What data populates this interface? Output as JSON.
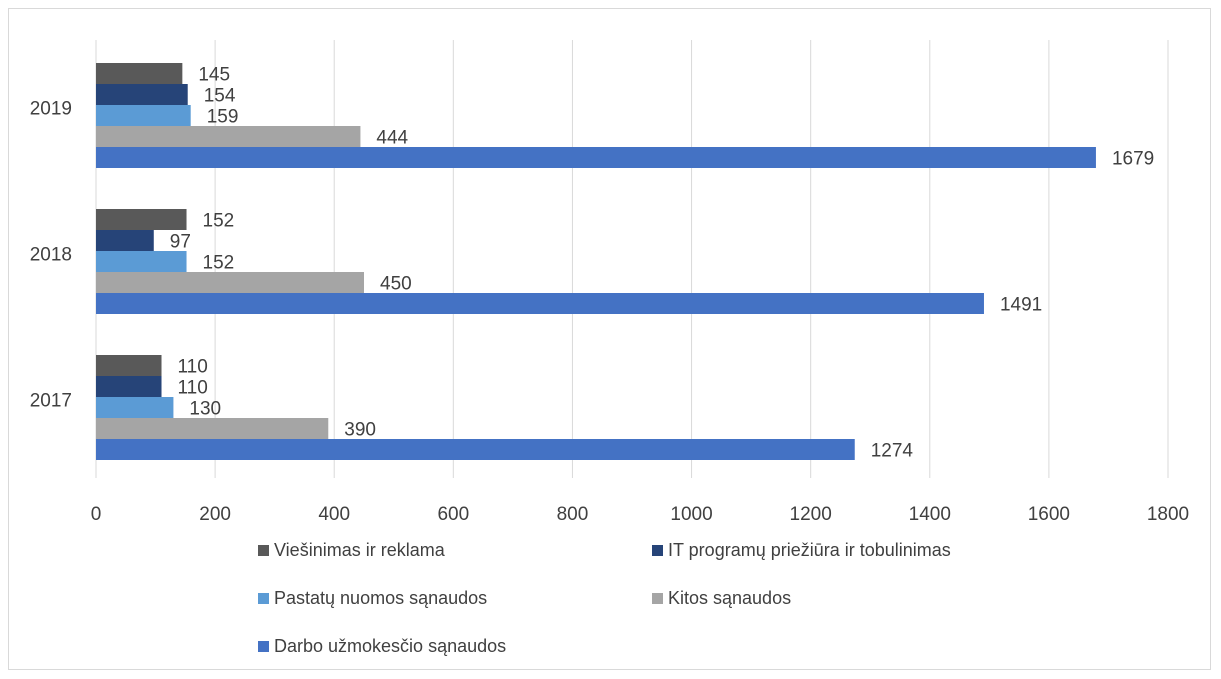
{
  "chart_data": {
    "type": "bar",
    "orientation": "horizontal",
    "categories": [
      "2017",
      "2018",
      "2019"
    ],
    "series": [
      {
        "name": "Viešinimas ir reklama",
        "color": "#595959",
        "values": [
          110,
          152,
          145
        ]
      },
      {
        "name": "IT programų priežiūra ir tobulinimas",
        "color": "#264478",
        "values": [
          110,
          97,
          154
        ]
      },
      {
        "name": "Pastatų nuomos sąnaudos",
        "color": "#5b9bd5",
        "values": [
          130,
          152,
          159
        ]
      },
      {
        "name": "Kitos sąnaudos",
        "color": "#a5a5a5",
        "values": [
          390,
          450,
          444
        ]
      },
      {
        "name": "Darbo užmokesčio sąnaudos",
        "color": "#4472c4",
        "values": [
          1274,
          1491,
          1679
        ]
      }
    ],
    "xlim": [
      0,
      1800
    ],
    "xticks": [
      0,
      200,
      400,
      600,
      800,
      1000,
      1200,
      1400,
      1600,
      1800
    ],
    "grid": true,
    "legend_position": "bottom",
    "title": "",
    "xlabel": "",
    "ylabel": ""
  }
}
